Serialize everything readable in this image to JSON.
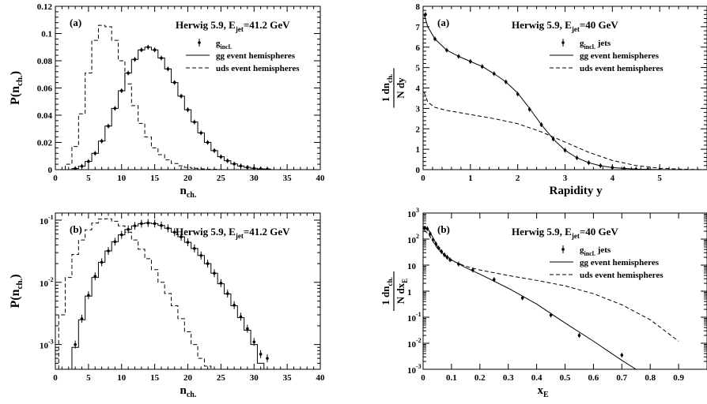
{
  "chart_data": [
    {
      "id": "tl",
      "type": "line",
      "panel_label": "(a)",
      "title_main": "Herwig 5.9, E",
      "title_sub": "jet",
      "title_end": "=41.2 GeV",
      "xlabel_main": "n",
      "xlabel_sub": "ch.",
      "ylabel_main": "P(n",
      "ylabel_sub": "ch.",
      "ylabel_end": ")",
      "xlim": [
        0,
        40
      ],
      "ylim": [
        0,
        0.12
      ],
      "yscale": "linear",
      "x_ticks": [
        0,
        5,
        10,
        15,
        20,
        25,
        30,
        35,
        40
      ],
      "x_tick_labels": [
        "0",
        "5",
        "10",
        "15",
        "20",
        "25",
        "30",
        "35",
        "40"
      ],
      "y_ticks": [
        0,
        0.02,
        0.04,
        0.06,
        0.08,
        0.1,
        0.12
      ],
      "y_tick_labels": [
        "0",
        "0.02",
        "0.04",
        "0.06",
        "0.08",
        "0.1",
        "0.12"
      ],
      "legend": [
        {
          "style": "marker",
          "label_main": "g",
          "label_sub": "incl."
        },
        {
          "style": "solid",
          "label_main": "gg event hemispheres",
          "label_sub": ""
        },
        {
          "style": "dashed",
          "label_main": "uds event hemispheres",
          "label_sub": ""
        }
      ],
      "series": [
        {
          "style": "marker",
          "x": [
            3,
            4,
            5,
            6,
            7,
            8,
            9,
            10,
            11,
            12,
            13,
            14,
            15,
            16,
            17,
            18,
            19,
            20,
            21,
            22,
            23,
            24,
            25,
            26,
            27,
            28,
            29,
            30,
            31,
            32
          ],
          "y": [
            0.0008,
            0.0025,
            0.006,
            0.012,
            0.021,
            0.032,
            0.045,
            0.058,
            0.071,
            0.081,
            0.088,
            0.09,
            0.088,
            0.082,
            0.074,
            0.064,
            0.054,
            0.044,
            0.035,
            0.027,
            0.02,
            0.014,
            0.0095,
            0.0065,
            0.0042,
            0.0027,
            0.0017,
            0.001,
            0.0006,
            0.0004
          ]
        },
        {
          "style": "solid",
          "x": [
            3,
            4,
            5,
            6,
            7,
            8,
            9,
            10,
            11,
            12,
            13,
            14,
            15,
            16,
            17,
            18,
            19,
            20,
            21,
            22,
            23,
            24,
            25,
            26,
            27,
            28,
            29,
            30,
            31,
            32
          ],
          "y": [
            0.0008,
            0.0025,
            0.006,
            0.012,
            0.021,
            0.032,
            0.045,
            0.058,
            0.071,
            0.081,
            0.088,
            0.09,
            0.088,
            0.082,
            0.074,
            0.064,
            0.054,
            0.044,
            0.035,
            0.027,
            0.02,
            0.014,
            0.0095,
            0.0065,
            0.0042,
            0.0027,
            0.0017,
            0.001,
            0.0006,
            0.0004
          ]
        },
        {
          "style": "dashed",
          "x": [
            2,
            3,
            4,
            5,
            6,
            7,
            8,
            9,
            10,
            11,
            12,
            13,
            14,
            15,
            16,
            17,
            18,
            19,
            20,
            21,
            22,
            23,
            24,
            25
          ],
          "y": [
            0.004,
            0.017,
            0.041,
            0.071,
            0.095,
            0.106,
            0.105,
            0.095,
            0.08,
            0.063,
            0.047,
            0.034,
            0.024,
            0.016,
            0.011,
            0.0072,
            0.0045,
            0.0028,
            0.0017,
            0.001,
            0.0006,
            0.0003,
            0.0002,
            0.0001
          ]
        }
      ]
    },
    {
      "id": "bl",
      "type": "line",
      "panel_label": "(b)",
      "title_main": "Herwig 5.9, E",
      "title_sub": "jet",
      "title_end": "=41.2 GeV",
      "xlabel_main": "n",
      "xlabel_sub": "ch.",
      "ylabel_main": "P(n",
      "ylabel_sub": "ch.",
      "ylabel_end": ")",
      "xlim": [
        0,
        40
      ],
      "ylim": [
        0.0004,
        0.13
      ],
      "yscale": "log",
      "x_ticks": [
        0,
        5,
        10,
        15,
        20,
        25,
        30,
        35,
        40
      ],
      "x_tick_labels": [
        "0",
        "5",
        "10",
        "15",
        "20",
        "25",
        "30",
        "35",
        "40"
      ],
      "y_ticks": [
        0.1,
        0.01,
        0.001
      ],
      "y_tick_labels": [
        {
          "b": "10",
          "e": "-1"
        },
        {
          "b": "10",
          "e": "-2"
        },
        {
          "b": "10",
          "e": "-3"
        }
      ],
      "legend": [],
      "series": [
        {
          "style": "marker",
          "x": [
            3,
            4,
            5,
            6,
            7,
            8,
            9,
            10,
            11,
            12,
            13,
            14,
            15,
            16,
            17,
            18,
            19,
            20,
            21,
            22,
            23,
            24,
            25,
            26,
            27,
            28,
            29,
            30,
            31,
            32
          ],
          "y": [
            0.001,
            0.0026,
            0.0062,
            0.0125,
            0.021,
            0.032,
            0.045,
            0.058,
            0.071,
            0.081,
            0.088,
            0.09,
            0.088,
            0.082,
            0.074,
            0.064,
            0.054,
            0.044,
            0.035,
            0.027,
            0.02,
            0.014,
            0.0097,
            0.0066,
            0.0043,
            0.0028,
            0.0018,
            0.0011,
            0.0007,
            0.0006
          ]
        },
        {
          "style": "solid",
          "x": [
            2,
            3,
            4,
            5,
            6,
            7,
            8,
            9,
            10,
            11,
            12,
            13,
            14,
            15,
            16,
            17,
            18,
            19,
            20,
            21,
            22,
            23,
            24,
            25,
            26,
            27,
            28,
            29,
            30,
            31
          ],
          "y": [
            0.0001,
            0.0009,
            0.0025,
            0.006,
            0.012,
            0.021,
            0.032,
            0.045,
            0.058,
            0.071,
            0.081,
            0.088,
            0.09,
            0.088,
            0.082,
            0.074,
            0.064,
            0.054,
            0.044,
            0.035,
            0.027,
            0.02,
            0.014,
            0.0095,
            0.0065,
            0.0042,
            0.0027,
            0.0017,
            0.001,
            0.0005
          ]
        },
        {
          "style": "dashed",
          "x": [
            1,
            2,
            3,
            4,
            5,
            6,
            7,
            8,
            9,
            10,
            11,
            12,
            13,
            14,
            15,
            16,
            17,
            18,
            19,
            20,
            21,
            22,
            23,
            24
          ],
          "y": [
            0.003,
            0.012,
            0.028,
            0.048,
            0.07,
            0.09,
            0.104,
            0.105,
            0.096,
            0.081,
            0.064,
            0.048,
            0.034,
            0.024,
            0.016,
            0.01,
            0.0066,
            0.0042,
            0.0026,
            0.0016,
            0.001,
            0.0006,
            0.00045,
            0.0001
          ]
        }
      ]
    },
    {
      "id": "tr",
      "type": "line",
      "panel_label": "(a)",
      "title_main": "Herwig 5.9, E",
      "title_sub": "jet",
      "title_end": "=40 GeV",
      "xlabel_main": "Rapidity y",
      "xlabel_sub": "",
      "ylabel_frac_num": "1  dn",
      "ylabel_frac_num_sub": "ch.",
      "ylabel_frac_den": "N  dy",
      "ylabel_frac_den_sub": "",
      "xlim": [
        0,
        6
      ],
      "ylim": [
        0,
        8
      ],
      "yscale": "linear",
      "x_ticks": [
        0,
        1,
        2,
        3,
        4,
        5,
        6
      ],
      "x_tick_labels": [
        "0",
        "1",
        "2",
        "3",
        "4",
        "5",
        ""
      ],
      "y_ticks": [
        0,
        1,
        2,
        3,
        4,
        5,
        6,
        7,
        8
      ],
      "y_tick_labels": [
        "0",
        "1",
        "2",
        "3",
        "4",
        "5",
        "6",
        "7",
        "8"
      ],
      "legend": [
        {
          "style": "marker",
          "label_main": "g",
          "label_sub": "incl.",
          "label_end": " jets"
        },
        {
          "style": "solid",
          "label_main": "gg event hemispheres",
          "label_sub": ""
        },
        {
          "style": "dashed",
          "label_main": "uds event hemispheres",
          "label_sub": ""
        }
      ],
      "series": [
        {
          "style": "marker",
          "x": [
            0.05,
            0.25,
            0.5,
            0.75,
            1.0,
            1.25,
            1.5,
            1.75,
            2.0,
            2.25,
            2.5,
            2.75,
            3.0,
            3.25,
            3.5,
            3.75,
            4.0,
            4.25,
            4.5,
            4.75,
            5.0
          ],
          "y": [
            7.6,
            6.4,
            5.85,
            5.55,
            5.3,
            5.05,
            4.7,
            4.3,
            3.7,
            2.95,
            2.2,
            1.5,
            0.95,
            0.58,
            0.34,
            0.19,
            0.1,
            0.05,
            0.025,
            0.012,
            0.005
          ]
        },
        {
          "style": "solid",
          "x": [
            0.02,
            0.1,
            0.25,
            0.5,
            0.75,
            1.0,
            1.25,
            1.5,
            1.75,
            2.0,
            2.25,
            2.5,
            2.75,
            3.0,
            3.25,
            3.5,
            3.75,
            4.0,
            4.5,
            5.0,
            5.5,
            6.0
          ],
          "y": [
            7.6,
            7.0,
            6.4,
            5.85,
            5.55,
            5.3,
            5.05,
            4.7,
            4.3,
            3.75,
            3.0,
            2.2,
            1.5,
            0.95,
            0.58,
            0.34,
            0.19,
            0.1,
            0.025,
            0.005,
            0.001,
            0.0
          ]
        },
        {
          "style": "dashed",
          "x": [
            0.02,
            0.1,
            0.25,
            0.5,
            1.0,
            1.5,
            2.0,
            2.5,
            3.0,
            3.5,
            4.0,
            4.5,
            5.0,
            5.5,
            6.0
          ],
          "y": [
            3.8,
            3.3,
            3.05,
            2.9,
            2.7,
            2.5,
            2.25,
            1.85,
            1.35,
            0.85,
            0.45,
            0.2,
            0.07,
            0.02,
            0.0
          ]
        }
      ]
    },
    {
      "id": "br",
      "type": "line",
      "panel_label": "(b)",
      "title_main": "Herwig 5.9, E",
      "title_sub": "jet",
      "title_end": "=40 GeV",
      "xlabel_main": "x",
      "xlabel_sub": "E",
      "ylabel_frac_num": "1  dn",
      "ylabel_frac_num_sub": "ch.",
      "ylabel_frac_den": "N  dx",
      "ylabel_frac_den_sub": "E",
      "xlim": [
        0,
        1.0
      ],
      "ylim": [
        0.001,
        1000
      ],
      "yscale": "log",
      "x_ticks": [
        0,
        0.1,
        0.2,
        0.3,
        0.4,
        0.5,
        0.6,
        0.7,
        0.8,
        0.9,
        1.0
      ],
      "x_tick_labels": [
        "0",
        "0.1",
        "0.2",
        "0.3",
        "0.4",
        "0.5",
        "0.6",
        "0.7",
        "0.8",
        "0.9",
        ""
      ],
      "y_ticks": [
        1000,
        100,
        10,
        1,
        0.1,
        0.01,
        0.001
      ],
      "y_tick_labels": [
        {
          "b": "10",
          "e": "3"
        },
        {
          "b": "10",
          "e": "2"
        },
        {
          "b": "10",
          "e": ""
        },
        {
          "b": "1",
          "e": ""
        },
        {
          "b": "10",
          "e": "-1"
        },
        {
          "b": "10",
          "e": "-2"
        },
        {
          "b": "10",
          "e": "-3"
        }
      ],
      "legend": [
        {
          "style": "marker",
          "label_main": "g",
          "label_sub": "incl.",
          "label_end": " jets"
        },
        {
          "style": "solid",
          "label_main": "gg event hemispheres",
          "label_sub": ""
        },
        {
          "style": "dashed",
          "label_main": "uds event hemispheres",
          "label_sub": ""
        }
      ],
      "series": [
        {
          "style": "marker",
          "x": [
            0.005,
            0.015,
            0.025,
            0.035,
            0.045,
            0.055,
            0.065,
            0.075,
            0.085,
            0.095,
            0.125,
            0.175,
            0.25,
            0.35,
            0.45,
            0.55,
            0.7
          ],
          "y": [
            260,
            250,
            160,
            95,
            65,
            45,
            33,
            25,
            20,
            16,
            11,
            6.5,
            2.8,
            0.55,
            0.12,
            0.02,
            0.0035
          ]
        },
        {
          "style": "solid",
          "x": [
            0.003,
            0.01,
            0.02,
            0.03,
            0.05,
            0.07,
            0.1,
            0.15,
            0.2,
            0.3,
            0.4,
            0.5,
            0.6,
            0.7,
            0.75
          ],
          "y": [
            300,
            270,
            220,
            140,
            55,
            28,
            16,
            8,
            4.5,
            1.3,
            0.32,
            0.06,
            0.012,
            0.0022,
            0.001
          ]
        },
        {
          "style": "dashed",
          "x": [
            0.003,
            0.01,
            0.02,
            0.03,
            0.05,
            0.07,
            0.1,
            0.15,
            0.2,
            0.3,
            0.4,
            0.5,
            0.6,
            0.7,
            0.8,
            0.9
          ],
          "y": [
            200,
            190,
            150,
            100,
            45,
            25,
            15,
            9,
            6.5,
            4.0,
            2.6,
            1.6,
            0.8,
            0.3,
            0.08,
            0.012
          ]
        }
      ]
    }
  ]
}
